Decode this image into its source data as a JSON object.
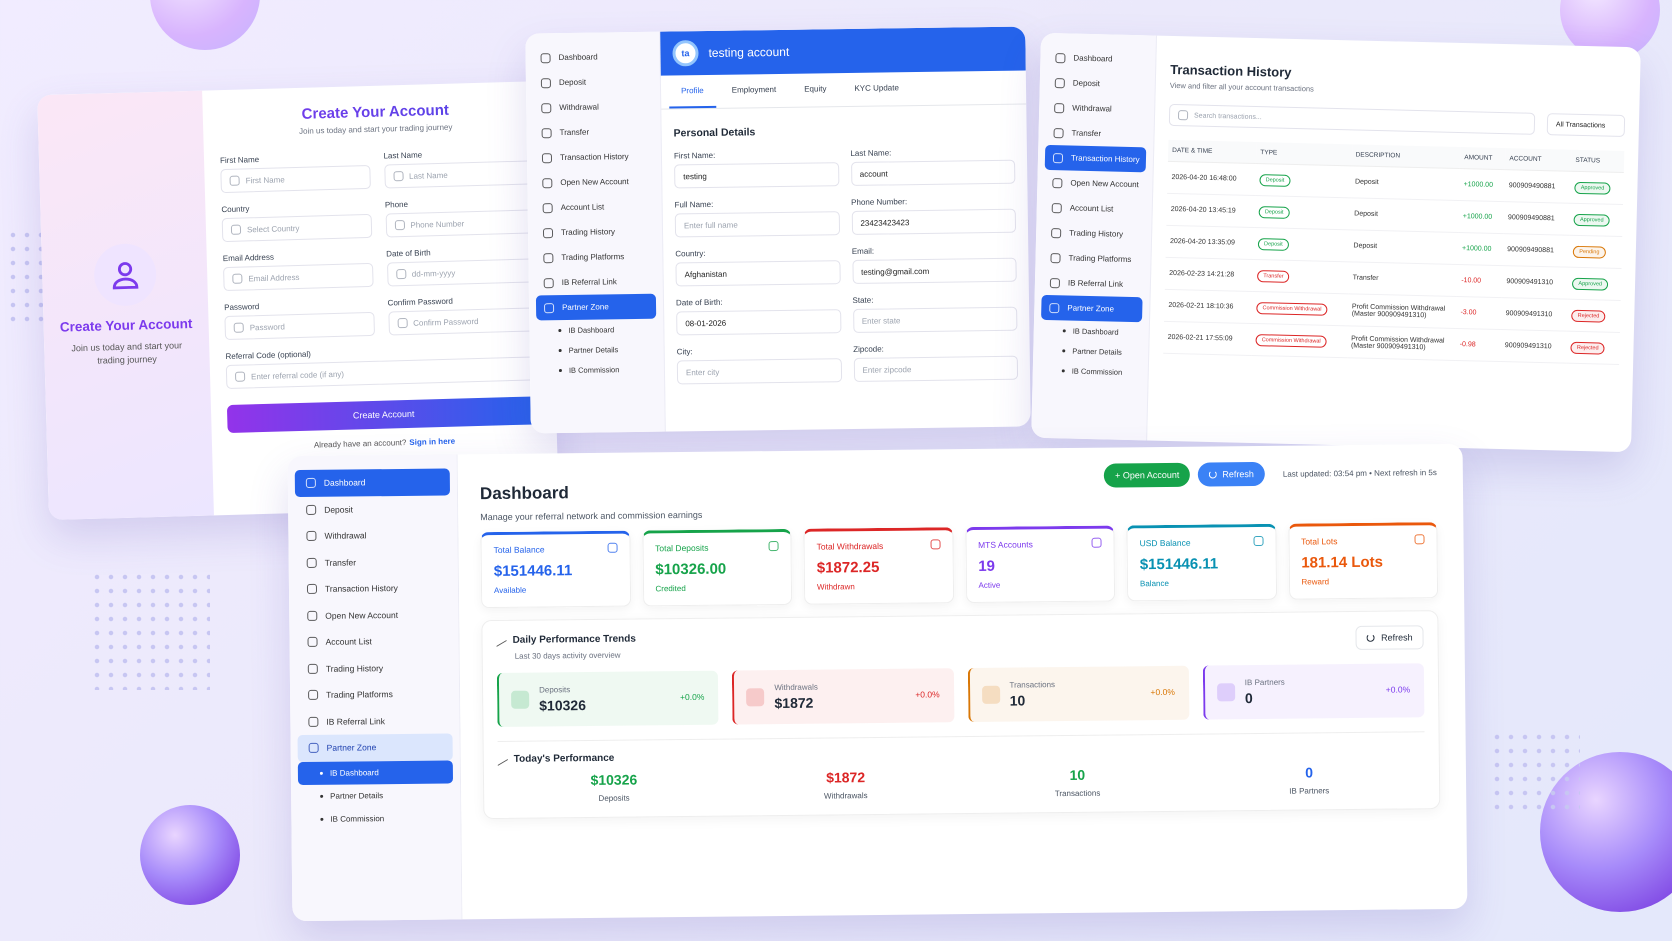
{
  "register": {
    "side_title": "Create Your Account",
    "side_subtitle": "Join us today and start your trading journey",
    "title": "Create Your Account",
    "subtitle": "Join us today and start your trading journey",
    "fields": [
      {
        "label": "First Name",
        "placeholder": "First Name"
      },
      {
        "label": "Last Name",
        "placeholder": "Last Name"
      },
      {
        "label": "Country",
        "placeholder": "Select Country"
      },
      {
        "label": "Phone",
        "placeholder": "Phone Number"
      },
      {
        "label": "Email Address",
        "placeholder": "Email Address"
      },
      {
        "label": "Date of Birth",
        "placeholder": "dd-mm-yyyy"
      },
      {
        "label": "Password",
        "placeholder": "Password"
      },
      {
        "label": "Confirm Password",
        "placeholder": "Confirm Password"
      }
    ],
    "referral": {
      "label": "Referral Code (optional)",
      "placeholder": "Enter referral code (if any)"
    },
    "button": "Create Account",
    "signin_prompt": "Already have an account?",
    "signin_link": "Sign in here"
  },
  "sidebar": {
    "items": [
      "Dashboard",
      "Deposit",
      "Withdrawal",
      "Transfer",
      "Transaction History",
      "Open New Account",
      "Account List",
      "Trading History",
      "Trading Platforms",
      "IB Referral Link",
      "Partner Zone"
    ],
    "sub_items": [
      "IB Dashboard",
      "Partner Details",
      "IB Commission"
    ]
  },
  "profile": {
    "avatar": "ta",
    "name": "testing account",
    "tabs": [
      "Profile",
      "Employment",
      "Equity",
      "KYC Update"
    ],
    "section": "Personal Details",
    "fields": [
      {
        "label": "First Name:",
        "value": "testing"
      },
      {
        "label": "Last Name:",
        "value": "account"
      },
      {
        "label": "Full Name:",
        "placeholder": "Enter full name"
      },
      {
        "label": "Phone Number:",
        "value": "23423423423"
      },
      {
        "label": "Country:",
        "value": "Afghanistan"
      },
      {
        "label": "Email:",
        "value": "testing@gmail.com"
      },
      {
        "label": "Date of Birth:",
        "value": "08-01-2026"
      },
      {
        "label": "State:",
        "placeholder": "Enter state"
      },
      {
        "label": "City:",
        "placeholder": "Enter city"
      },
      {
        "label": "Zipcode:",
        "placeholder": "Enter zipcode"
      }
    ]
  },
  "transactions": {
    "title": "Transaction History",
    "subtitle": "View and filter all your account transactions",
    "search_placeholder": "Search transactions...",
    "filter": "All Transactions",
    "columns": [
      "DATE & TIME",
      "TYPE",
      "DESCRIPTION",
      "AMOUNT",
      "ACCOUNT",
      "STATUS"
    ],
    "rows": [
      {
        "date": "2026-04-20 16:48:00",
        "type": "Deposit",
        "description": "Deposit",
        "amount": "+1000.00",
        "account": "900909490881",
        "status": "Approved",
        "type_color": "#16a34a",
        "status_color": "#16a34a"
      },
      {
        "date": "2026-04-20 13:45:19",
        "type": "Deposit",
        "description": "Deposit",
        "amount": "+1000.00",
        "account": "900909490881",
        "status": "Approved",
        "type_color": "#16a34a",
        "status_color": "#16a34a"
      },
      {
        "date": "2026-04-20 13:35:09",
        "type": "Deposit",
        "description": "Deposit",
        "amount": "+1000.00",
        "account": "900909490881",
        "status": "Pending",
        "type_color": "#16a34a",
        "status_color": "#d97706"
      },
      {
        "date": "2026-02-23 14:21:28",
        "type": "Transfer",
        "description": "Transfer",
        "amount": "-10.00",
        "account": "900909491310",
        "status": "Approved",
        "type_color": "#dc2626",
        "status_color": "#16a34a"
      },
      {
        "date": "2026-02-21 18:10:36",
        "type": "Commission Withdrawal",
        "description": "Profit Commission Withdrawal (Master 900909491310)",
        "amount": "-3.00",
        "account": "900909491310",
        "status": "Rejected",
        "type_color": "#dc2626",
        "status_color": "#dc2626"
      },
      {
        "date": "2026-02-21 17:55:09",
        "type": "Commission Withdrawal",
        "description": "Profit Commission Withdrawal (Master 900909491310)",
        "amount": "-0.98",
        "account": "900909491310",
        "status": "Rejected",
        "type_color": "#dc2626",
        "status_color": "#dc2626"
      }
    ]
  },
  "dashboard": {
    "title": "Dashboard",
    "subtitle": "Manage your referral network and commission earnings",
    "open_account": "+ Open Account",
    "refresh": "Refresh",
    "last_updated": "Last updated: 03:54 pm  •  Next refresh in 5s",
    "cards": [
      {
        "title": "Total Balance",
        "value": "$151446.11",
        "note": "Available",
        "color": "#2563eb"
      },
      {
        "title": "Total Deposits",
        "value": "$10326.00",
        "note": "Credited",
        "color": "#16a34a"
      },
      {
        "title": "Total Withdrawals",
        "value": "$1872.25",
        "note": "Withdrawn",
        "color": "#dc2626"
      },
      {
        "title": "MTS Accounts",
        "value": "19",
        "note": "Active",
        "color": "#7c3aed"
      },
      {
        "title": "USD Balance",
        "value": "$151446.11",
        "note": "Balance",
        "color": "#0891b2"
      },
      {
        "title": "Total Lots",
        "value": "181.14 Lots",
        "note": "Reward",
        "color": "#ea580c"
      }
    ],
    "trends": {
      "title": "Daily Performance Trends",
      "subtitle": "Last 30 days activity overview",
      "refresh": "Refresh",
      "items": [
        {
          "label": "Deposits",
          "value": "$10326",
          "change": "+0.0%",
          "color": "#16a34a"
        },
        {
          "label": "Withdrawals",
          "value": "$1872",
          "change": "+0.0%",
          "color": "#dc2626"
        },
        {
          "label": "Transactions",
          "value": "10",
          "change": "+0.0%",
          "color": "#d97706"
        },
        {
          "label": "IB Partners",
          "value": "0",
          "change": "+0.0%",
          "color": "#7c3aed"
        }
      ]
    },
    "today": {
      "title": "Today's Performance",
      "items": [
        {
          "value": "$10326",
          "label": "Deposits",
          "color": "#16a34a"
        },
        {
          "value": "$1872",
          "label": "Withdrawals",
          "color": "#dc2626"
        },
        {
          "value": "10",
          "label": "Transactions",
          "color": "#16a34a"
        },
        {
          "value": "0",
          "label": "IB Partners",
          "color": "#2563eb"
        }
      ]
    }
  }
}
